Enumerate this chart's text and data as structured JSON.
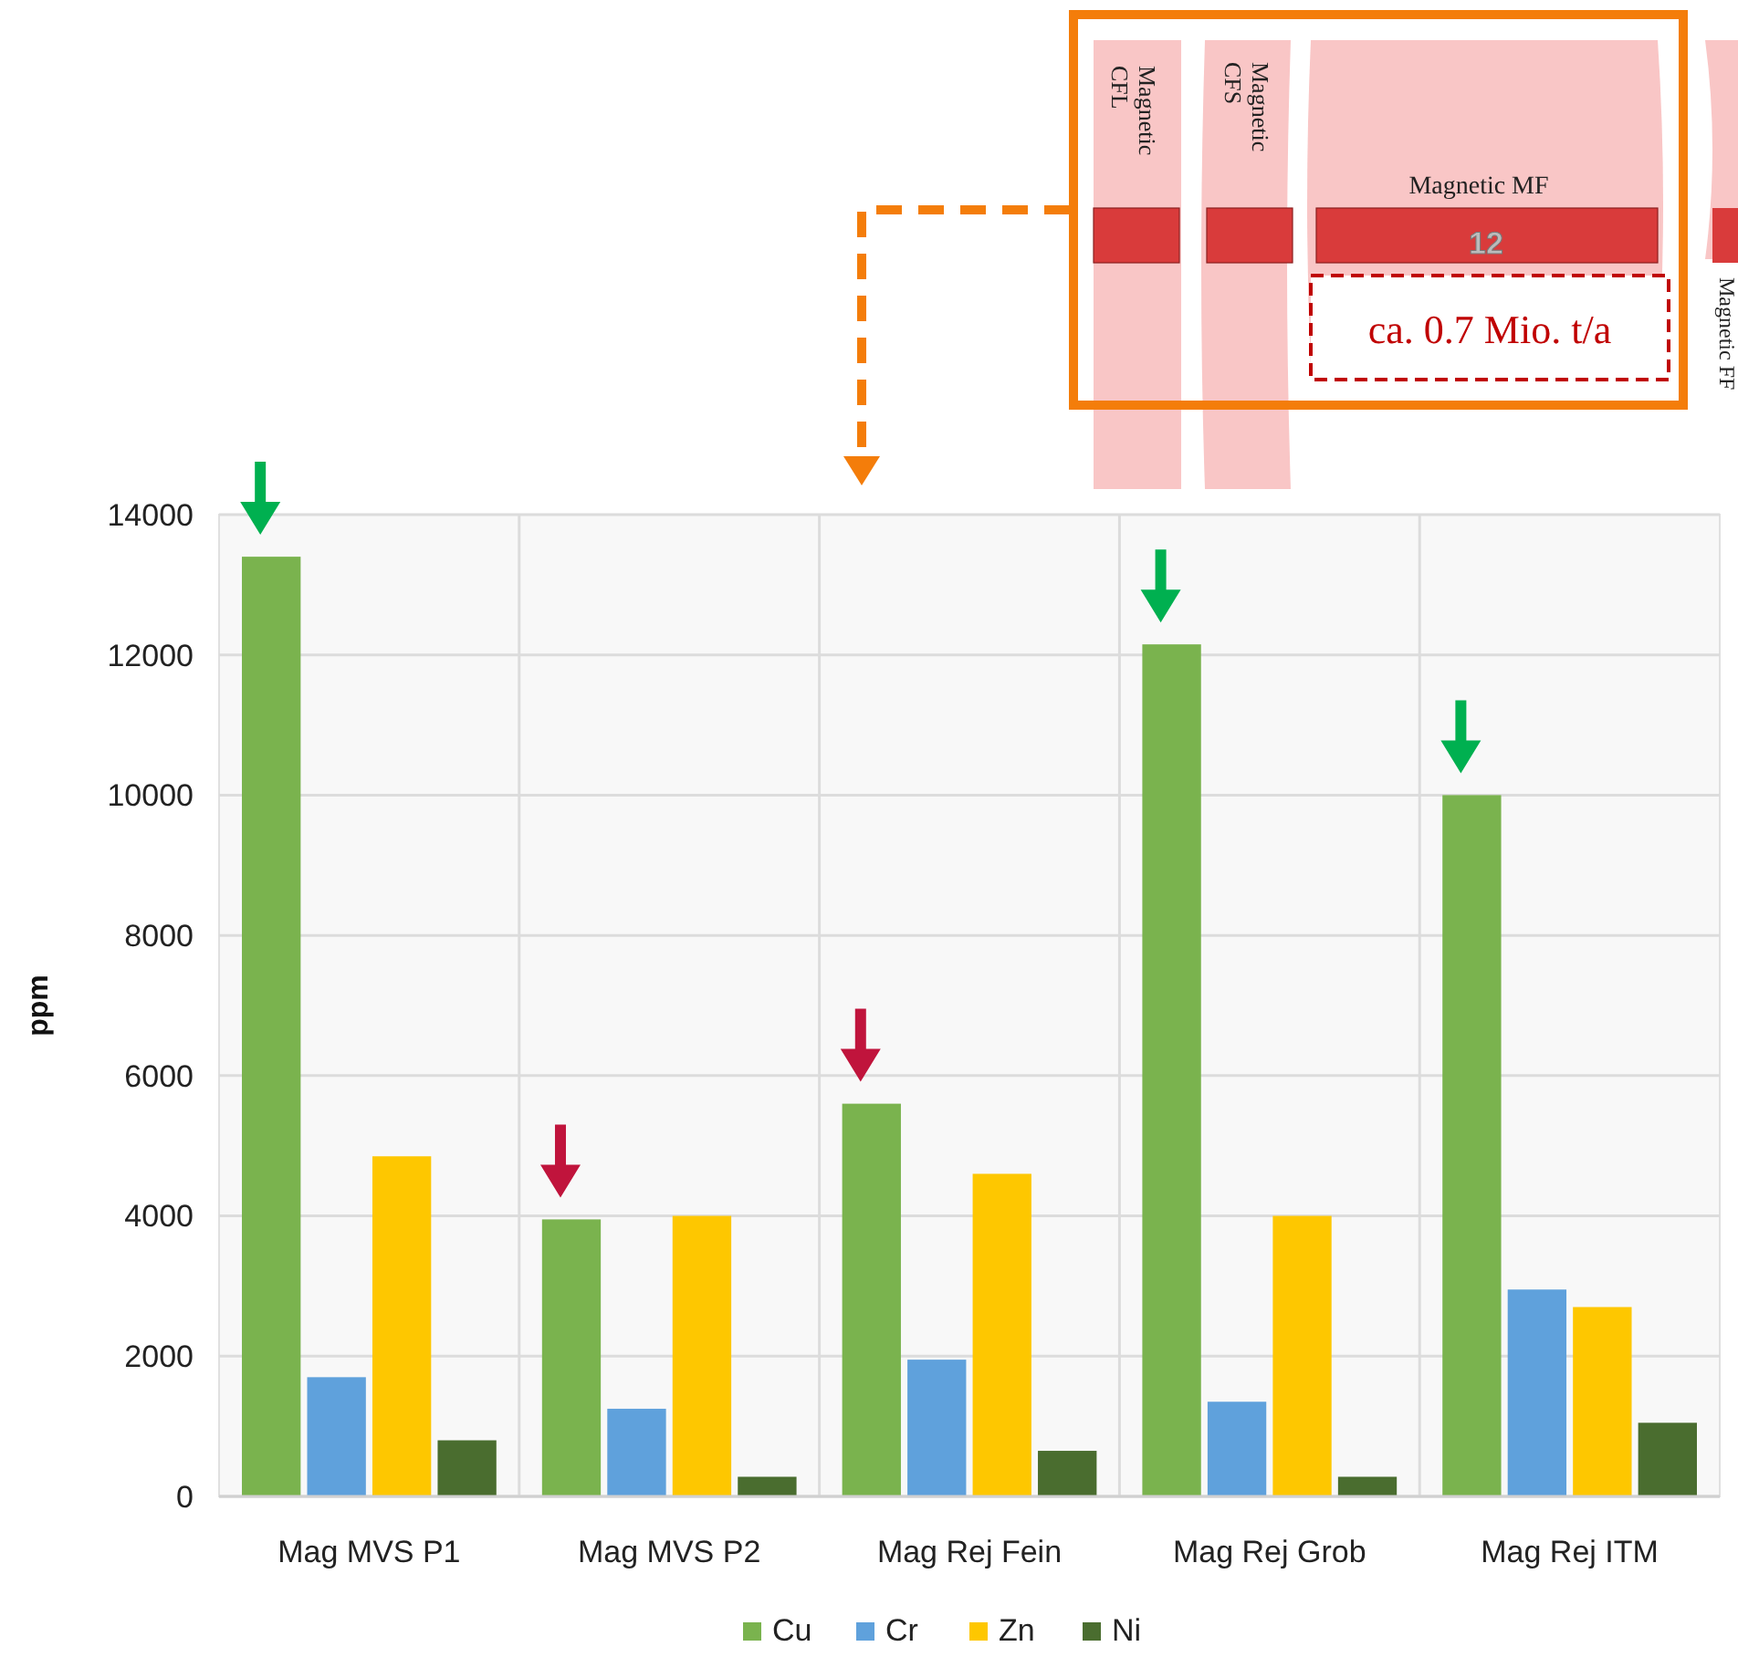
{
  "chart_data": {
    "type": "bar",
    "ylabel": "ppm",
    "categories": [
      "Mag MVS P1",
      "Mag MVS P2",
      "Mag Rej Fein",
      "Mag Rej Grob",
      "Mag Rej ITM"
    ],
    "series": [
      {
        "name": "Cu",
        "color": "#7ab34e",
        "values": [
          13400,
          3950,
          5600,
          12150,
          10000
        ]
      },
      {
        "name": "Cr",
        "color": "#5fa1dc",
        "values": [
          1700,
          1250,
          1950,
          1350,
          2950
        ]
      },
      {
        "name": "Zn",
        "color": "#fec700",
        "values": [
          4850,
          4000,
          4600,
          4000,
          2700
        ]
      },
      {
        "name": "Ni",
        "color": "#4a6d2f",
        "values": [
          800,
          280,
          650,
          280,
          1050
        ]
      }
    ],
    "ylim": [
      0,
      14000
    ],
    "yticks": [
      0,
      2000,
      4000,
      6000,
      8000,
      10000,
      12000,
      14000
    ],
    "grid": true,
    "legend": "bottom",
    "annotations": [
      "Magnetic CFL",
      "Magnetic CFS",
      "Magnetic MF",
      "12",
      "ca. 0.7 Mio. t/a",
      "Magnetic FF"
    ]
  }
}
